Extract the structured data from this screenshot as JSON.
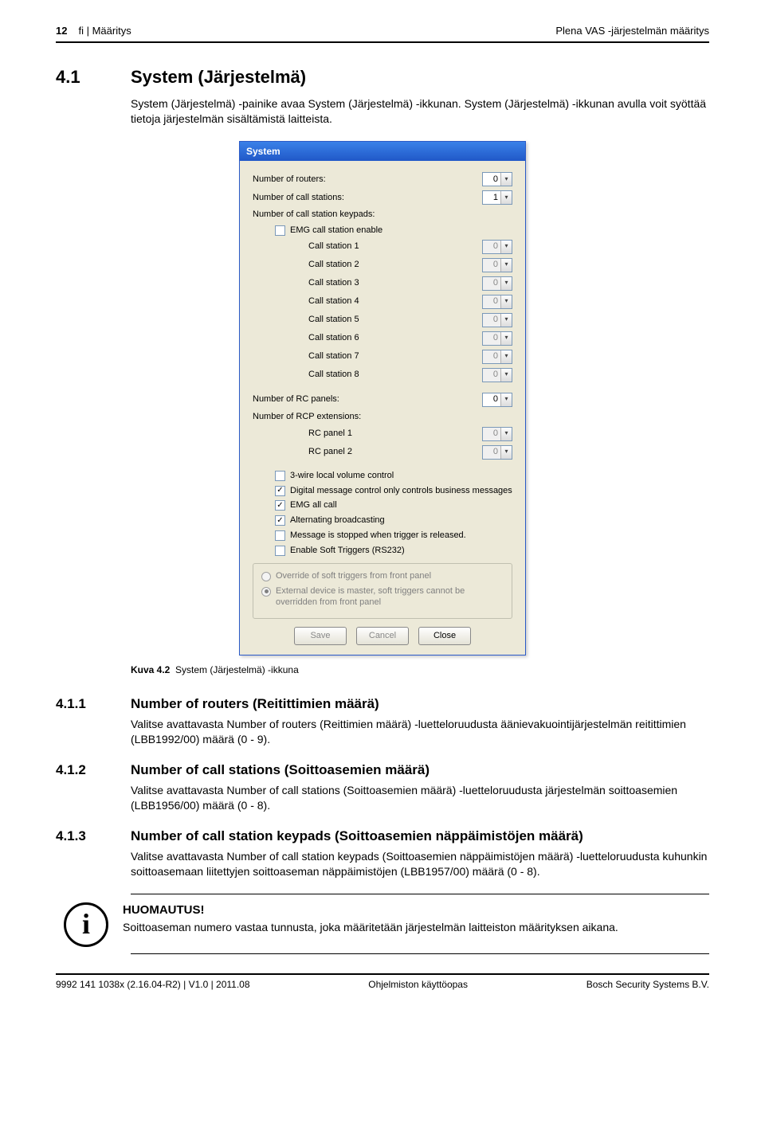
{
  "header": {
    "page_no": "12",
    "section": "fi | Määritys",
    "doc_title": "Plena VAS -järjestelmän määritys"
  },
  "sec41": {
    "num": "4.1",
    "title": "System (Järjestelmä)",
    "body": "System (Järjestelmä) -painike avaa System (Järjestelmä) -ikkunan. System (Järjestelmä) -ikkunan avulla voit syöttää tietoja järjestelmän sisältämistä laitteista."
  },
  "win": {
    "title": "System",
    "rows": {
      "num_routers": {
        "label": "Number of routers:",
        "value": "0"
      },
      "num_call_stations": {
        "label": "Number of call stations:",
        "value": "1"
      },
      "num_keypads_label": "Number of call station keypads:",
      "emg_enable": {
        "label": "EMG call station enable",
        "checked": false
      },
      "call_stations": [
        {
          "label": "Call station 1",
          "value": "0"
        },
        {
          "label": "Call station 2",
          "value": "0"
        },
        {
          "label": "Call station 3",
          "value": "0"
        },
        {
          "label": "Call station 4",
          "value": "0"
        },
        {
          "label": "Call station 5",
          "value": "0"
        },
        {
          "label": "Call station 6",
          "value": "0"
        },
        {
          "label": "Call station 7",
          "value": "0"
        },
        {
          "label": "Call station 8",
          "value": "0"
        }
      ],
      "num_rc_panels": {
        "label": "Number of RC panels:",
        "value": "0"
      },
      "num_rcp_ext_label": "Number of RCP extensions:",
      "rc_panels": [
        {
          "label": "RC panel 1",
          "value": "0"
        },
        {
          "label": "RC panel 2",
          "value": "0"
        }
      ],
      "checks": [
        {
          "label": "3-wire local volume control",
          "checked": false
        },
        {
          "label": "Digital message control only controls business messages",
          "checked": true
        },
        {
          "label": "EMG all call",
          "checked": true
        },
        {
          "label": "Alternating broadcasting",
          "checked": true
        },
        {
          "label": "Message is stopped when trigger is released.",
          "checked": false
        },
        {
          "label": "Enable Soft Triggers (RS232)",
          "checked": false
        }
      ],
      "radios": [
        {
          "label": "Override of soft triggers from front panel",
          "selected": false
        },
        {
          "label": "External device is master, soft triggers cannot be overridden from front panel",
          "selected": true
        }
      ],
      "buttons": {
        "save": "Save",
        "cancel": "Cancel",
        "close": "Close"
      }
    }
  },
  "caption": {
    "prefix": "Kuva 4.2",
    "text": "System (Järjestelmä) -ikkuna"
  },
  "s411": {
    "num": "4.1.1",
    "title": "Number of routers (Reitittimien määrä)",
    "body": "Valitse avattavasta Number of routers (Reittimien määrä) -luetteloruudusta äänievakuointijärjestelmän reitittimien (LBB1992/00) määrä (0 - 9)."
  },
  "s412": {
    "num": "4.1.2",
    "title": "Number of call stations (Soittoasemien määrä)",
    "body": "Valitse avattavasta Number of call stations (Soittoasemien määrä) -luetteloruudusta järjestelmän soittoasemien (LBB1956/00) määrä (0 - 8)."
  },
  "s413": {
    "num": "4.1.3",
    "title": "Number of call station keypads (Soittoasemien näppäimistöjen määrä)",
    "body": "Valitse avattavasta Number of call station keypads (Soittoasemien näppäimistöjen määrä) -luetteloruudusta kuhunkin soittoasemaan liitettyjen soittoaseman näppäimistöjen (LBB1957/00) määrä (0 - 8)."
  },
  "note": {
    "heading": "HUOMAUTUS!",
    "body": "Soittoaseman numero vastaa tunnusta, joka määritetään järjestelmän laitteiston määrityksen aikana."
  },
  "footer": {
    "left": "9992 141 1038x  (2.16.04-R2) | V1.0 | 2011.08",
    "center": "Ohjelmiston käyttöopas",
    "right": "Bosch Security Systems B.V."
  }
}
